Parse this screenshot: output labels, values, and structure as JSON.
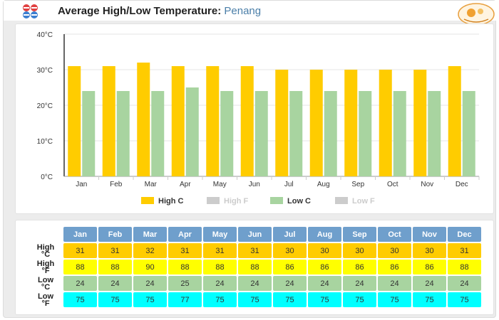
{
  "header": {
    "title": "Average High/Low Temperature:",
    "location": "Penang",
    "icon": "thermometer-icon",
    "logo": "site-logo"
  },
  "chart_data": {
    "type": "bar",
    "title": "Average High/Low Temperature: Penang",
    "categories": [
      "Jan",
      "Feb",
      "Mar",
      "Apr",
      "May",
      "Jun",
      "Jul",
      "Aug",
      "Sep",
      "Oct",
      "Nov",
      "Dec"
    ],
    "series": [
      {
        "name": "High C",
        "color": "#ffcc00",
        "visible": true,
        "values": [
          31,
          31,
          32,
          31,
          31,
          31,
          30,
          30,
          30,
          30,
          30,
          31
        ]
      },
      {
        "name": "High F",
        "color": "#cccccc",
        "visible": false,
        "values": [
          88,
          88,
          90,
          88,
          88,
          88,
          86,
          86,
          86,
          86,
          86,
          88
        ]
      },
      {
        "name": "Low C",
        "color": "#a8d4a0",
        "visible": true,
        "values": [
          24,
          24,
          24,
          25,
          24,
          24,
          24,
          24,
          24,
          24,
          24,
          24
        ]
      },
      {
        "name": "Low F",
        "color": "#cccccc",
        "visible": false,
        "values": [
          75,
          75,
          75,
          77,
          75,
          75,
          75,
          75,
          75,
          75,
          75,
          75
        ]
      }
    ],
    "yticks": [
      "0°C",
      "10°C",
      "20°C",
      "30°C",
      "40°C"
    ],
    "ylim": [
      0,
      40
    ],
    "xlabel": "",
    "ylabel": "",
    "legend_position": "bottom"
  },
  "table": {
    "months": [
      "Jan",
      "Feb",
      "Mar",
      "Apr",
      "May",
      "Jun",
      "Jul",
      "Aug",
      "Sep",
      "Oct",
      "Nov",
      "Dec"
    ],
    "rows": [
      {
        "label_top": "High",
        "label_bottom": "°C",
        "color": "#ffcc00",
        "values": [
          "31",
          "31",
          "32",
          "31",
          "31",
          "31",
          "30",
          "30",
          "30",
          "30",
          "30",
          "31"
        ]
      },
      {
        "label_top": "High",
        "label_bottom": "°F",
        "color": "#ffff00",
        "values": [
          "88",
          "88",
          "90",
          "88",
          "88",
          "88",
          "86",
          "86",
          "86",
          "86",
          "86",
          "88"
        ]
      },
      {
        "label_top": "Low",
        "label_bottom": "°C",
        "color": "#a8d4a0",
        "values": [
          "24",
          "24",
          "24",
          "25",
          "24",
          "24",
          "24",
          "24",
          "24",
          "24",
          "24",
          "24"
        ]
      },
      {
        "label_top": "Low",
        "label_bottom": "°F",
        "color": "#00ffff",
        "values": [
          "75",
          "75",
          "75",
          "77",
          "75",
          "75",
          "75",
          "75",
          "75",
          "75",
          "75",
          "75"
        ]
      }
    ]
  }
}
